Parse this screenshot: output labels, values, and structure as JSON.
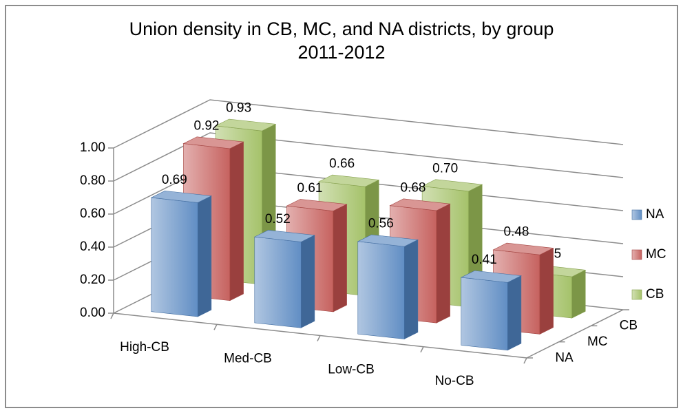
{
  "chart_data": {
    "type": "bar3d",
    "title": "Union density in CB, MC, and NA districts, by group",
    "subtitle": "2011-2012",
    "categories": [
      "High-CB",
      "Med-CB",
      "Low-CB",
      "No-CB"
    ],
    "series": [
      {
        "name": "NA",
        "color": "#4f81bd",
        "values": [
          0.69,
          0.52,
          0.56,
          0.41
        ],
        "value_labels": [
          "0.69",
          "0.52",
          "0.56",
          "0.41"
        ]
      },
      {
        "name": "MC",
        "color": "#c0504d",
        "values": [
          0.92,
          0.61,
          0.68,
          0.48
        ],
        "value_labels": [
          "0.92",
          "0.61",
          "0.68",
          "0.48"
        ]
      },
      {
        "name": "CB",
        "color": "#9bbb59",
        "values": [
          0.93,
          0.66,
          0.7,
          0.25
        ],
        "value_labels": [
          "0.93",
          "0.66",
          "0.70",
          "0.25"
        ]
      }
    ],
    "ylim": [
      0,
      1
    ],
    "yticks": [
      {
        "value": 0,
        "label": "0.00"
      },
      {
        "value": 0.2,
        "label": "0.20"
      },
      {
        "value": 0.4,
        "label": "0.40"
      },
      {
        "value": 0.6,
        "label": "0.60"
      },
      {
        "value": 0.8,
        "label": "0.80"
      },
      {
        "value": 1,
        "label": "1.00"
      }
    ],
    "grid": true,
    "legend": "right"
  }
}
